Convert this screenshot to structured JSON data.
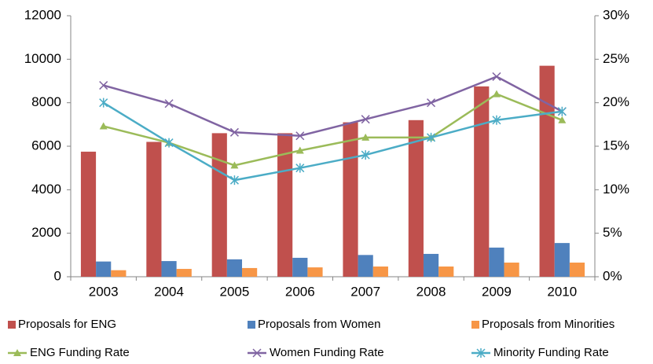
{
  "chart_data": {
    "type": "bar_line",
    "categories": [
      "2003",
      "2004",
      "2005",
      "2006",
      "2007",
      "2008",
      "2009",
      "2010"
    ],
    "series": [
      {
        "name": "Proposals for ENG",
        "color": "#c0504d",
        "kind": "bar",
        "values": [
          5750,
          6200,
          6600,
          6600,
          7100,
          7200,
          8750,
          9700
        ]
      },
      {
        "name": "Proposals from Women",
        "color": "#4f81bd",
        "kind": "bar",
        "values": [
          700,
          720,
          800,
          870,
          1000,
          1050,
          1340,
          1550
        ]
      },
      {
        "name": "Proposals from Minorities",
        "color": "#f79646",
        "kind": "bar",
        "values": [
          300,
          360,
          400,
          430,
          470,
          470,
          650,
          650
        ]
      },
      {
        "name": "ENG Funding Rate",
        "color": "#9bbb59",
        "kind": "line",
        "marker": "triangle",
        "axis": "y2",
        "values": [
          17.3,
          15.4,
          12.8,
          14.5,
          16,
          16,
          21,
          18
        ]
      },
      {
        "name": "Women Funding Rate",
        "color": "#8064a2",
        "kind": "line",
        "marker": "x",
        "axis": "y2",
        "values": [
          22,
          19.9,
          16.6,
          16.2,
          18.1,
          20,
          23,
          19
        ]
      },
      {
        "name": "Minority Funding Rate",
        "color": "#4bacc6",
        "kind": "line",
        "marker": "star",
        "axis": "y2",
        "values": [
          20,
          15.4,
          11.1,
          12.5,
          14,
          16,
          18,
          19
        ]
      }
    ],
    "ylim": [
      0,
      12000
    ],
    "yticks": [
      0,
      2000,
      4000,
      6000,
      8000,
      10000,
      12000
    ],
    "y2lim": [
      0,
      30
    ],
    "y2ticks": [
      {
        "value": 0,
        "label": "0%"
      },
      {
        "value": 5,
        "label": "5%"
      },
      {
        "value": 10,
        "label": "10%"
      },
      {
        "value": 15,
        "label": "15%"
      },
      {
        "value": 20,
        "label": "20%"
      },
      {
        "value": 25,
        "label": "25%"
      },
      {
        "value": 30,
        "label": "30%"
      }
    ],
    "grid": false
  }
}
